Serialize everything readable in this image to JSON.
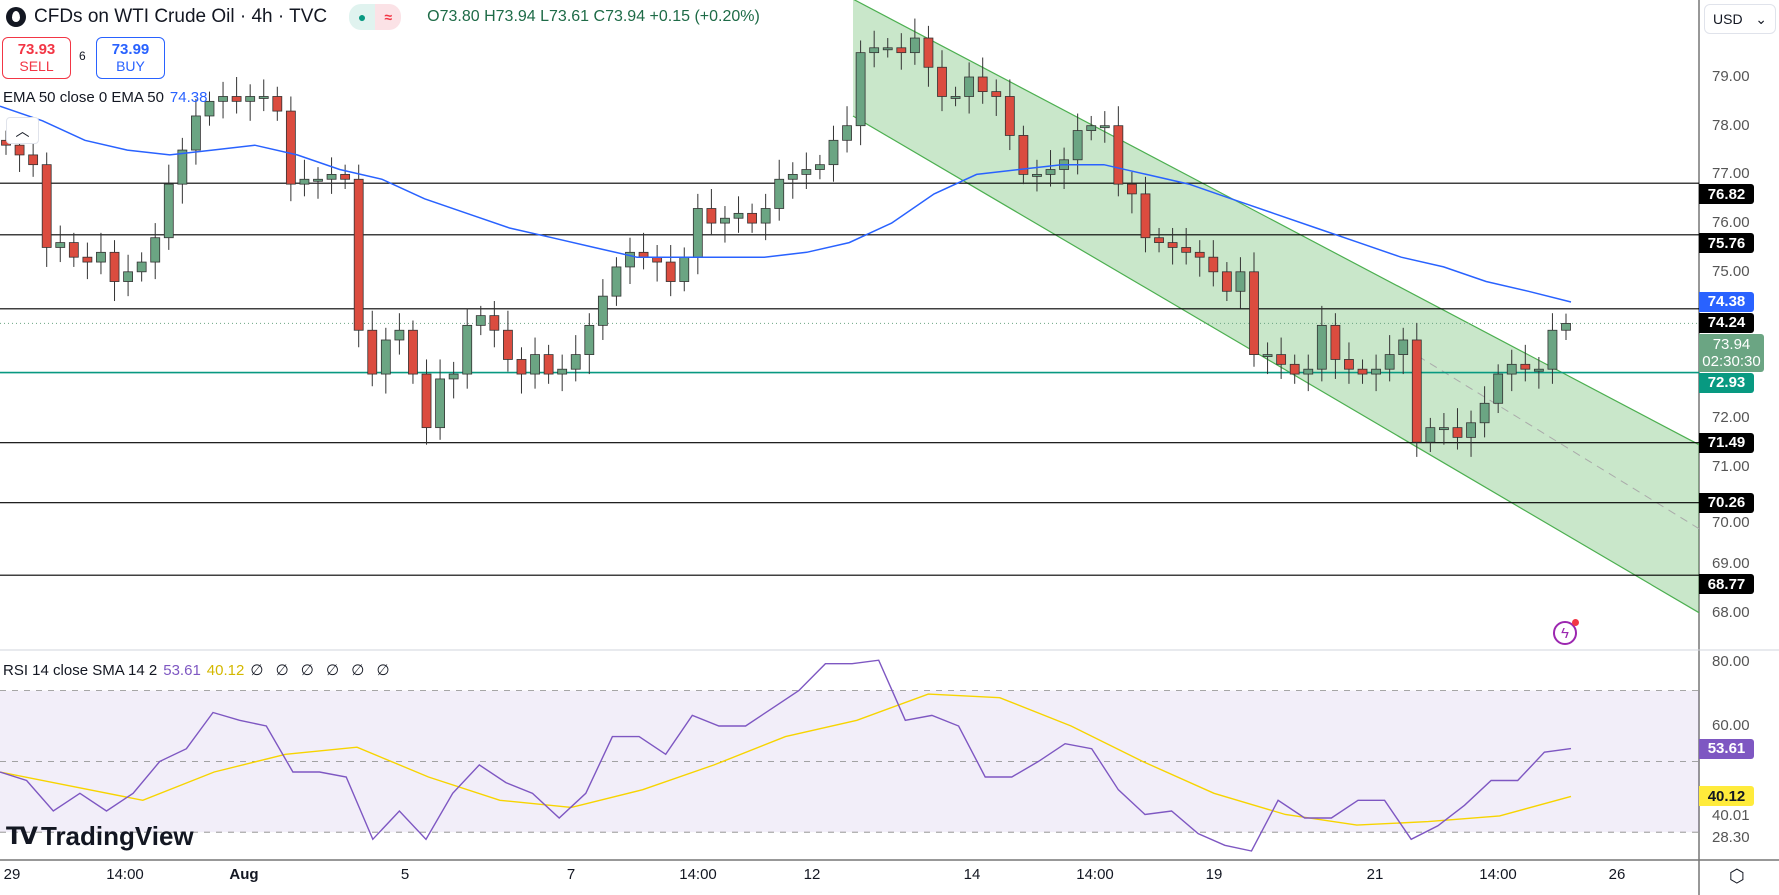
{
  "header": {
    "title": "CFDs on WTI Crude Oil · 4h · TVC",
    "market_open_icon": "dot-icon",
    "market_status_icon": "approx-icon",
    "ohlc": "O73.80 H73.94 L73.61 C73.94 +0.15 (+0.20%)"
  },
  "trade": {
    "sell_price": "73.93",
    "sell_label": "SELL",
    "spread": "6",
    "buy_price": "73.99",
    "buy_label": "BUY"
  },
  "ema_legend": {
    "label": "EMA 50 close 0 EMA 50",
    "value": "74.38"
  },
  "rsi_legend": {
    "label": "RSI 14 close SMA 14 2",
    "rsi": "53.61",
    "sma": "40.12",
    "extra": "∅ ∅ ∅ ∅ ∅ ∅"
  },
  "currency": "USD",
  "price_ticks": [
    "79.00",
    "78.00",
    "77.00",
    "76.00",
    "75.00",
    "72.00",
    "71.00",
    "70.00",
    "69.00",
    "68.00"
  ],
  "rsi_ticks": [
    "80.00",
    "60.00",
    "40.01",
    "28.30"
  ],
  "levels": [
    {
      "label": "76.82",
      "price": 76.82,
      "color": "#000000"
    },
    {
      "label": "75.76",
      "price": 75.76,
      "color": "#000000"
    },
    {
      "label": "74.24",
      "price": 74.24,
      "color": "#000000"
    },
    {
      "label": "72.93",
      "price": 72.93,
      "color": "#089981"
    },
    {
      "label": "71.49",
      "price": 71.49,
      "color": "#000000"
    },
    {
      "label": "70.26",
      "price": 70.26,
      "color": "#000000"
    },
    {
      "label": "68.77",
      "price": 68.77,
      "color": "#000000"
    }
  ],
  "tags": {
    "ema": "74.38",
    "last_price": "73.94",
    "countdown": "02:30:30",
    "rsi": "53.61",
    "rsi_sma": "40.12"
  },
  "time_labels": [
    "29",
    "14:00",
    "Aug",
    "5",
    "7",
    "14:00",
    "12",
    "14",
    "14:00",
    "19",
    "21",
    "14:00",
    "26"
  ],
  "logo": "TradingView",
  "colors": {
    "up": "#6ba583",
    "down": "#db4c3f",
    "ema": "#2962ff",
    "rsi": "#7e57c2",
    "rsi_sma": "#f7d400",
    "channel": "#4caf50",
    "level_teal": "#089981"
  },
  "chart_data": {
    "type": "candlestick",
    "closes": [
      77.6,
      77.4,
      77.2,
      75.5,
      75.6,
      75.3,
      75.2,
      75.4,
      74.8,
      75.0,
      75.2,
      75.7,
      76.8,
      77.5,
      78.2,
      78.5,
      78.6,
      78.5,
      78.6,
      78.6,
      78.3,
      76.8,
      76.9,
      76.9,
      77.0,
      76.9,
      73.8,
      72.9,
      73.6,
      73.8,
      72.9,
      71.8,
      72.8,
      72.9,
      73.9,
      74.1,
      73.8,
      73.2,
      72.9,
      73.3,
      72.9,
      73.0,
      73.3,
      73.9,
      74.5,
      75.1,
      75.4,
      75.3,
      75.2,
      74.8,
      75.3,
      76.3,
      76.0,
      76.1,
      76.2,
      76.0,
      76.3,
      76.9,
      77.0,
      77.1,
      77.2,
      77.7,
      78.0,
      79.5,
      79.6,
      79.6,
      79.5,
      79.8,
      79.2,
      78.6,
      78.6,
      79.0,
      78.7,
      78.6,
      77.8,
      77.0,
      77.0,
      77.1,
      77.3,
      77.9,
      78.0,
      78.0,
      76.8,
      76.6,
      75.7,
      75.6,
      75.5,
      75.4,
      75.3,
      75.0,
      74.6,
      75.0,
      73.3,
      73.3,
      73.1,
      72.9,
      73.0,
      73.9,
      73.2,
      73.0,
      72.9,
      73.0,
      73.3,
      73.6,
      71.5,
      71.8,
      71.8,
      71.6,
      71.9,
      72.3,
      72.9,
      73.1,
      73.0,
      73.0,
      73.8,
      73.94
    ],
    "ema50": [
      78.4,
      78.1,
      77.7,
      77.5,
      77.4,
      77.5,
      77.6,
      77.4,
      77.1,
      76.9,
      76.5,
      76.2,
      75.9,
      75.7,
      75.5,
      75.3,
      75.3,
      75.3,
      75.3,
      75.4,
      75.6,
      76.0,
      76.6,
      77.0,
      77.1,
      77.2,
      77.2,
      77.0,
      76.8,
      76.5,
      76.2,
      75.9,
      75.6,
      75.3,
      75.1,
      74.8,
      74.6,
      74.38
    ],
    "rsi": [
      47,
      44.6,
      36,
      41,
      36,
      41,
      50,
      53.6,
      63.8,
      61.6,
      60,
      47,
      47,
      45.6,
      28,
      36,
      28,
      41,
      49,
      44,
      41,
      34,
      41,
      57,
      57,
      52,
      63,
      60,
      60,
      65,
      70,
      77.6,
      77.6,
      78.6,
      61.6,
      63,
      60,
      45.6,
      45.6,
      50,
      55,
      53.6,
      42,
      35,
      36,
      29.6,
      26.3,
      24.7,
      39,
      34,
      34,
      39,
      39,
      28,
      31.8,
      37.6,
      44.6,
      44.6,
      52.6,
      53.61
    ],
    "rsi_sma": [
      47,
      43,
      39,
      47,
      52,
      54,
      45.6,
      39,
      37,
      42,
      49,
      57,
      61.6,
      69,
      68,
      60,
      50,
      41,
      35,
      32,
      33,
      34.6,
      40.12
    ],
    "rsi_bands": [
      70,
      50,
      30
    ],
    "channel": {
      "upper": [
        80.6,
        71.45
      ],
      "lower": [
        78.2,
        68.0
      ]
    },
    "price_range": [
      67.5,
      80.6
    ],
    "rsi_range": [
      20,
      82
    ]
  }
}
